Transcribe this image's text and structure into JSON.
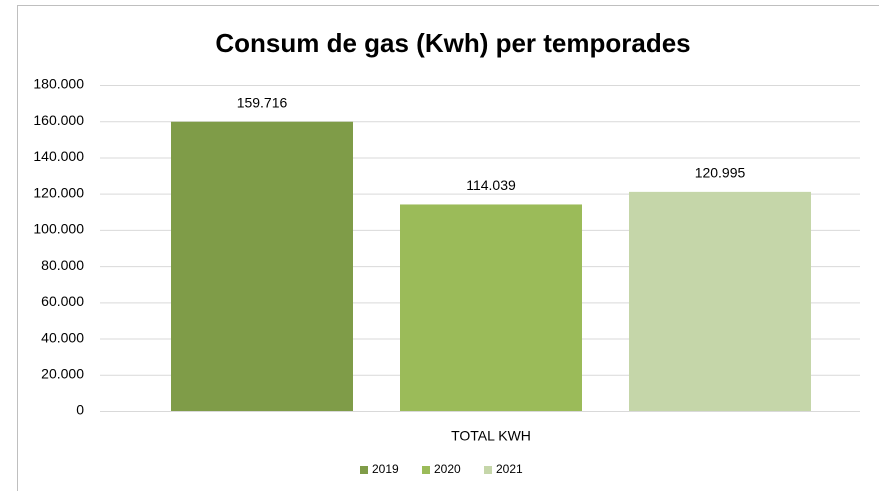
{
  "chart_data": {
    "type": "bar",
    "title": "Consum de gas (Kwh) per temporades",
    "categories": [
      "TOTAL KWH"
    ],
    "series": [
      {
        "name": "2019",
        "color": "#7f9c48",
        "values": [
          159716
        ],
        "value_labels": [
          "159.716"
        ]
      },
      {
        "name": "2020",
        "color": "#9bbb59",
        "values": [
          114039
        ],
        "value_labels": [
          "114.039"
        ]
      },
      {
        "name": "2021",
        "color": "#c5d6a9",
        "values": [
          120995
        ],
        "value_labels": [
          "120.995"
        ]
      }
    ],
    "ylim": [
      0,
      180000
    ],
    "yticks": [
      0,
      {
        "value": 20000,
        "label": "20.000"
      },
      {
        "value": 40000,
        "label": "40.000"
      },
      {
        "value": 60000,
        "label": "60.000"
      },
      {
        "value": 80000,
        "label": "80.000"
      },
      {
        "value": 100000,
        "label": "100.000"
      },
      {
        "value": 120000,
        "label": "120.000"
      },
      {
        "value": 140000,
        "label": "140.000"
      },
      {
        "value": 160000,
        "label": "160.000"
      },
      {
        "value": 180000,
        "label": "180.000"
      }
    ],
    "grid": true,
    "legend": "bottom"
  }
}
